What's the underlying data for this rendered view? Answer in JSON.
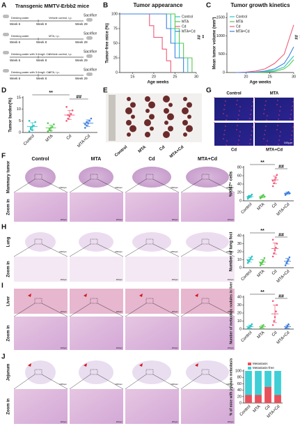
{
  "panel_labels": [
    "A",
    "B",
    "C",
    "D",
    "E",
    "G",
    "F",
    "H",
    "I",
    "J"
  ],
  "panel_a": {
    "title": "Transgenic MMTV-Erbb2 mice",
    "rows": [
      {
        "start": "Drinking water",
        "start_week": "Week 6",
        "mid_week": "Week 8",
        "treatment": "Vehicle control, i.p.",
        "end_week": "Week 29",
        "end": "Sacrifice"
      },
      {
        "start": "Drinking water",
        "start_week": "Week 6",
        "mid_week": "Week 8",
        "treatment": "MTA, i.p.",
        "end_week": "Week 29",
        "end": "Sacrifice"
      },
      {
        "start": "Drinking water with 3.6mg/L Cd",
        "start_week": "Week 6",
        "mid_week": "Week 8",
        "treatment": "Vehicle control, i.p.",
        "end_week": "Week 29",
        "end": "Sacrifice"
      },
      {
        "start": "Drinking water with 3.6mg/L Cd",
        "start_week": "Week 6",
        "mid_week": "Week 8",
        "treatment": "MTA, i.p.",
        "end_week": "Week 29",
        "end": "Sacrifice"
      }
    ]
  },
  "panel_e": {
    "labels": [
      "Control",
      "MTA",
      "Cd",
      "MTA+Cd"
    ]
  },
  "panel_g": {
    "labels": [
      "Control",
      "MTA",
      "Cd",
      "MTA+Cd"
    ],
    "scale": "100μm"
  },
  "histology": {
    "columns": [
      "Control",
      "MTA",
      "Cd",
      "MTA+Cd"
    ],
    "panels": [
      {
        "tissue": "Mammary tumor",
        "zoom": "Zoom in",
        "scale": [
          "2000μm",
          "200μm"
        ]
      },
      {
        "tissue": "Lung",
        "zoom": "Zoom in",
        "scale": [
          "2000μm",
          "400μm"
        ]
      },
      {
        "tissue": "Liver",
        "zoom": "Zoom in",
        "scale": [
          "200μm",
          "100μm"
        ]
      },
      {
        "tissue": "Jejunum",
        "zoom": "Zoom in",
        "scale": [
          "1000μm",
          "200μm"
        ]
      }
    ]
  },
  "chart_data": [
    {
      "type": "line",
      "title": "Tumor appearance",
      "y_label": "Tumor-free mice (%)",
      "x_label": "Age weeks",
      "xlim": [
        12,
        30
      ],
      "xticks": [
        15,
        20,
        25,
        30
      ],
      "ylim": [
        0,
        100
      ],
      "yticks": [
        0,
        25,
        50,
        75,
        100
      ],
      "annotations": [
        "##",
        "**"
      ],
      "series": [
        {
          "name": "Control",
          "color": "#29c5c5",
          "x": [
            12,
            24,
            24,
            25,
            25,
            26,
            26,
            28,
            28
          ],
          "values": [
            100,
            100,
            75,
            75,
            50,
            50,
            25,
            25,
            0
          ]
        },
        {
          "name": "MTA",
          "color": "#57c84d",
          "x": [
            12,
            25,
            25,
            26,
            26,
            27,
            27,
            29,
            29
          ],
          "values": [
            100,
            100,
            75,
            75,
            50,
            50,
            25,
            25,
            0
          ]
        },
        {
          "name": "Cd",
          "color": "#f05a78",
          "x": [
            12,
            19,
            19,
            20,
            20,
            22,
            22,
            23,
            23,
            24,
            24
          ],
          "values": [
            100,
            100,
            80,
            80,
            60,
            60,
            40,
            40,
            20,
            20,
            0
          ]
        },
        {
          "name": "MTA+Cd",
          "color": "#3d7fe0",
          "x": [
            12,
            23,
            23,
            24,
            24,
            25,
            25,
            27,
            27
          ],
          "values": [
            100,
            100,
            75,
            75,
            50,
            50,
            25,
            25,
            0
          ]
        }
      ]
    },
    {
      "type": "line",
      "title": "Tumor growth kinetics",
      "y_label": "Mean tumor volume (mm³)",
      "x_label": "Age weeks",
      "xlim": [
        16,
        30
      ],
      "xticks": [
        20,
        25,
        30
      ],
      "ylim": [
        0,
        1600
      ],
      "yticks": [
        0,
        500,
        1000,
        1500
      ],
      "annotations": [
        "##",
        "**"
      ],
      "series": [
        {
          "name": "Control",
          "color": "#29c5c5",
          "x": [
            18,
            20,
            22,
            24,
            26,
            28,
            29,
            30
          ],
          "values": [
            0,
            0,
            5,
            20,
            60,
            150,
            300,
            450
          ]
        },
        {
          "name": "MTA",
          "color": "#57c84d",
          "x": [
            18,
            20,
            22,
            24,
            26,
            28,
            29,
            30
          ],
          "values": [
            0,
            0,
            0,
            10,
            30,
            100,
            200,
            350
          ]
        },
        {
          "name": "Cd",
          "color": "#f05a78",
          "x": [
            18,
            20,
            22,
            24,
            26,
            28,
            29,
            30
          ],
          "values": [
            0,
            10,
            40,
            100,
            250,
            500,
            900,
            1300
          ]
        },
        {
          "name": "MTA+Cd",
          "color": "#3d7fe0",
          "x": [
            18,
            20,
            22,
            24,
            26,
            28,
            29,
            30
          ],
          "values": [
            0,
            0,
            10,
            40,
            100,
            250,
            450,
            700
          ]
        }
      ]
    },
    {
      "type": "dot",
      "y_label": "Tumor burden(%)",
      "ylim": [
        0,
        15
      ],
      "yticks": [
        0,
        5,
        10,
        15
      ],
      "annotations": [
        "**",
        "##"
      ],
      "series": [
        {
          "name": "Control",
          "color": "#29c5c5",
          "values": [
            0.5,
            1.5,
            2.5,
            3,
            4.5,
            5,
            2,
            1
          ],
          "mean": 2.6,
          "sd": 1.6
        },
        {
          "name": "MTA",
          "color": "#57c84d",
          "values": [
            0.5,
            1,
            2,
            2.5,
            3.5,
            4,
            1.5,
            0.8
          ],
          "mean": 2,
          "sd": 1.2
        },
        {
          "name": "Cd",
          "color": "#f05a78",
          "values": [
            5,
            6,
            7,
            8,
            9.5,
            11,
            7.5
          ],
          "mean": 7.5,
          "sd": 2
        },
        {
          "name": "MTA+Cd",
          "color": "#3d7fe0",
          "values": [
            2,
            3,
            4,
            5,
            6,
            3.5,
            4.5
          ],
          "mean": 4,
          "sd": 1.4
        }
      ]
    },
    {
      "type": "dot",
      "y_label": "%Ki67⁺ cells",
      "ylim": [
        0,
        80
      ],
      "yticks": [
        0,
        20,
        40,
        60,
        80
      ],
      "annotations": [
        "**",
        "##"
      ],
      "series": [
        {
          "name": "Control",
          "color": "#29c5c5",
          "values": [
            5,
            8,
            10,
            12,
            15,
            9,
            11
          ],
          "mean": 10,
          "sd": 3
        },
        {
          "name": "MTA",
          "color": "#57c84d",
          "values": [
            6,
            9,
            12,
            14,
            10,
            8
          ],
          "mean": 10,
          "sd": 3
        },
        {
          "name": "Cd",
          "color": "#f05a78",
          "values": [
            35,
            42,
            50,
            55,
            62,
            48
          ],
          "mean": 50,
          "sd": 9
        },
        {
          "name": "MTA+Cd",
          "color": "#3d7fe0",
          "values": [
            14,
            17,
            19,
            21,
            18,
            16
          ],
          "mean": 18,
          "sd": 2.5
        }
      ]
    },
    {
      "type": "dot",
      "y_label": "Number of lung foci",
      "ylim": [
        0,
        40
      ],
      "yticks": [
        0,
        10,
        20,
        30,
        40
      ],
      "annotations": [
        "**",
        "##"
      ],
      "series": [
        {
          "name": "Control",
          "color": "#29c5c5",
          "values": [
            6,
            8,
            10,
            12,
            14,
            9
          ],
          "mean": 10,
          "sd": 3
        },
        {
          "name": "MTA",
          "color": "#57c84d",
          "values": [
            3,
            5,
            7,
            9,
            12,
            6
          ],
          "mean": 7,
          "sd": 3
        },
        {
          "name": "Cd",
          "color": "#f05a78",
          "values": [
            14,
            18,
            22,
            25,
            30,
            35
          ],
          "mean": 24,
          "sd": 7
        },
        {
          "name": "MTA+Cd",
          "color": "#3d7fe0",
          "values": [
            3,
            6,
            8,
            10,
            13
          ],
          "mean": 8,
          "sd": 3.5
        }
      ]
    },
    {
      "type": "dot",
      "y_label": "Number of metastatic nodules in liver",
      "ylim": [
        0,
        40
      ],
      "yticks": [
        0,
        10,
        20,
        30,
        40
      ],
      "annotations": [
        "**",
        "##"
      ],
      "series": [
        {
          "name": "Control",
          "color": "#29c5c5",
          "values": [
            1,
            2,
            3,
            4,
            6
          ],
          "mean": 3,
          "sd": 2
        },
        {
          "name": "MTA",
          "color": "#57c84d",
          "values": [
            1,
            2,
            3,
            5
          ],
          "mean": 3,
          "sd": 1.7
        },
        {
          "name": "Cd",
          "color": "#f05a78",
          "values": [
            5,
            10,
            15,
            22,
            30,
            35
          ],
          "mean": 19,
          "sd": 11
        },
        {
          "name": "MTA+Cd",
          "color": "#3d7fe0",
          "values": [
            1,
            2,
            4,
            6
          ],
          "mean": 3,
          "sd": 2
        }
      ]
    },
    {
      "type": "stacked",
      "y_label": "% of mice with jejunum metastasis",
      "ylim": [
        0,
        100
      ],
      "yticks": [
        0,
        20,
        40,
        60,
        80,
        100
      ],
      "categories": [
        "Control",
        "MTA",
        "Cd",
        "MTA+Cd"
      ],
      "series": [
        {
          "name": "Metastasis",
          "color": "#e8505b",
          "values": [
            25,
            25,
            50,
            25
          ]
        },
        {
          "name": "Metastasis-free",
          "color": "#3fcfd6",
          "values": [
            75,
            75,
            50,
            75
          ]
        }
      ]
    }
  ]
}
